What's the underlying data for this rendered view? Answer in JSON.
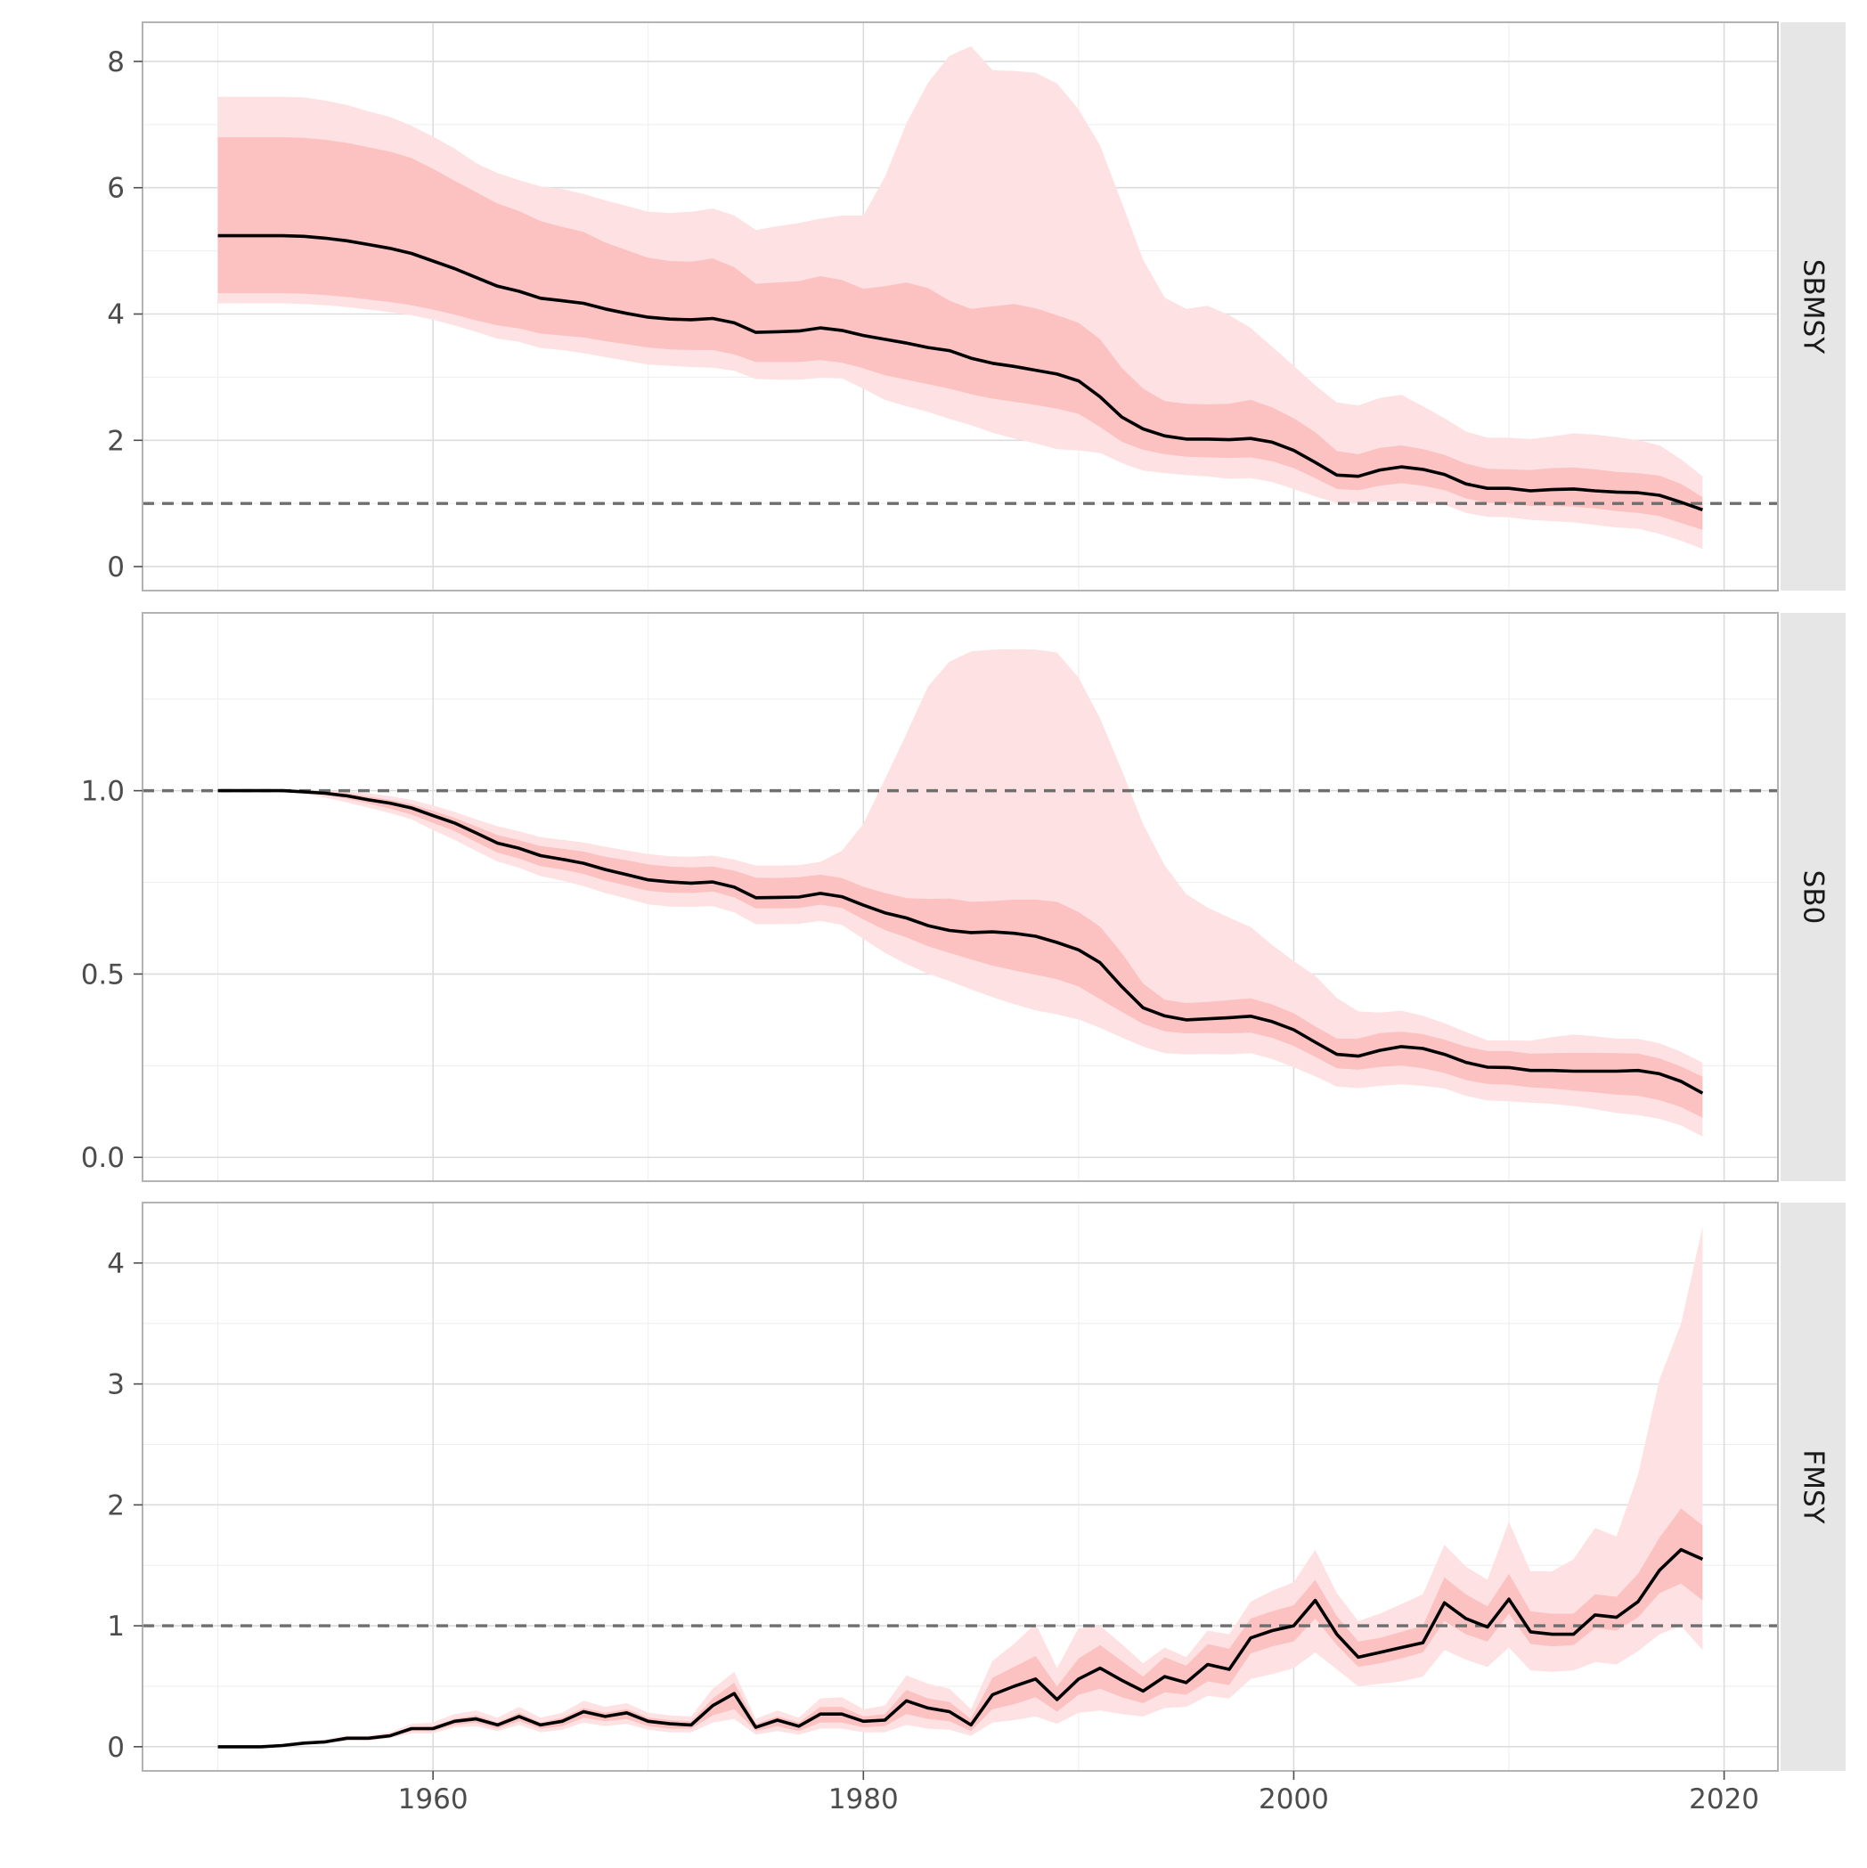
{
  "chart_data": {
    "type": "area",
    "facet_layout": "vertical-stack, shared x axis, facet labels in right strips",
    "grid": true,
    "legend": "none",
    "x_axis": {
      "range": [
        1946.5,
        2022.5
      ],
      "ticks": [
        1960,
        1980,
        2000,
        2020
      ],
      "tick_labels": [
        "1960",
        "1980",
        "2000",
        "2020"
      ]
    },
    "colors": {
      "outer_band": "#fee1e2",
      "inner_band": "#fcc2c1",
      "median_line": "#000000",
      "reference_line": "#6e6e6e",
      "strip": "#e6e6e6",
      "grid": "#dcdcdc"
    },
    "years": [
      1950,
      1951,
      1952,
      1953,
      1954,
      1955,
      1956,
      1957,
      1958,
      1959,
      1960,
      1961,
      1962,
      1963,
      1964,
      1965,
      1966,
      1967,
      1968,
      1969,
      1970,
      1971,
      1972,
      1973,
      1974,
      1975,
      1976,
      1977,
      1978,
      1979,
      1980,
      1981,
      1982,
      1983,
      1984,
      1985,
      1986,
      1987,
      1988,
      1989,
      1990,
      1991,
      1992,
      1993,
      1994,
      1995,
      1996,
      1997,
      1998,
      1999,
      2000,
      2001,
      2002,
      2003,
      2004,
      2005,
      2006,
      2007,
      2008,
      2009,
      2010,
      2011,
      2012,
      2013,
      2014,
      2015,
      2016,
      2017,
      2018,
      2019
    ],
    "panels": [
      {
        "label": "SBMSY",
        "y_range": [
          -0.38,
          8.62
        ],
        "y_ticks": [
          0,
          2,
          4,
          6,
          8
        ],
        "y_tick_labels": [
          "0",
          "2",
          "4",
          "6",
          "8"
        ],
        "reference": 1,
        "median": [
          5.24,
          5.24,
          5.24,
          5.24,
          5.23,
          5.2,
          5.16,
          5.1,
          5.04,
          4.96,
          4.84,
          4.72,
          4.58,
          4.44,
          4.36,
          4.25,
          4.21,
          4.17,
          4.08,
          4.01,
          3.95,
          3.92,
          3.91,
          3.93,
          3.86,
          3.71,
          3.72,
          3.73,
          3.78,
          3.74,
          3.66,
          3.6,
          3.54,
          3.47,
          3.42,
          3.3,
          3.22,
          3.17,
          3.11,
          3.05,
          2.94,
          2.69,
          2.37,
          2.18,
          2.07,
          2.02,
          2.02,
          2.01,
          2.03,
          1.97,
          1.84,
          1.65,
          1.45,
          1.43,
          1.53,
          1.58,
          1.54,
          1.46,
          1.31,
          1.24,
          1.24,
          1.2,
          1.22,
          1.23,
          1.2,
          1.18,
          1.17,
          1.13,
          1.02,
          0.9
        ],
        "inner_lower": [
          4.33,
          4.33,
          4.33,
          4.33,
          4.32,
          4.3,
          4.27,
          4.23,
          4.19,
          4.14,
          4.07,
          3.99,
          3.9,
          3.82,
          3.77,
          3.69,
          3.66,
          3.63,
          3.57,
          3.52,
          3.47,
          3.44,
          3.43,
          3.43,
          3.36,
          3.24,
          3.24,
          3.24,
          3.27,
          3.23,
          3.14,
          3.03,
          2.96,
          2.89,
          2.82,
          2.73,
          2.66,
          2.61,
          2.56,
          2.5,
          2.42,
          2.21,
          1.98,
          1.85,
          1.78,
          1.74,
          1.73,
          1.72,
          1.73,
          1.67,
          1.56,
          1.4,
          1.23,
          1.21,
          1.28,
          1.32,
          1.28,
          1.21,
          1.08,
          1.01,
          1.0,
          0.96,
          0.96,
          0.95,
          0.92,
          0.88,
          0.85,
          0.8,
          0.69,
          0.58
        ],
        "inner_upper": [
          6.8,
          6.8,
          6.8,
          6.8,
          6.79,
          6.76,
          6.71,
          6.64,
          6.57,
          6.47,
          6.3,
          6.11,
          5.93,
          5.75,
          5.63,
          5.47,
          5.38,
          5.3,
          5.13,
          5.01,
          4.89,
          4.84,
          4.83,
          4.88,
          4.74,
          4.48,
          4.5,
          4.52,
          4.6,
          4.54,
          4.4,
          4.44,
          4.5,
          4.41,
          4.21,
          4.08,
          4.12,
          4.16,
          4.09,
          3.98,
          3.86,
          3.6,
          3.15,
          2.82,
          2.62,
          2.58,
          2.57,
          2.58,
          2.64,
          2.52,
          2.35,
          2.13,
          1.83,
          1.78,
          1.88,
          1.92,
          1.86,
          1.77,
          1.63,
          1.55,
          1.54,
          1.53,
          1.56,
          1.57,
          1.54,
          1.5,
          1.48,
          1.44,
          1.31,
          1.1
        ],
        "outer_lower": [
          4.17,
          4.17,
          4.17,
          4.17,
          4.16,
          4.14,
          4.11,
          4.07,
          4.03,
          3.98,
          3.91,
          3.82,
          3.72,
          3.61,
          3.56,
          3.46,
          3.43,
          3.38,
          3.32,
          3.26,
          3.2,
          3.18,
          3.16,
          3.15,
          3.1,
          2.97,
          2.96,
          2.96,
          2.99,
          2.98,
          2.82,
          2.64,
          2.54,
          2.45,
          2.34,
          2.24,
          2.12,
          2.03,
          1.95,
          1.86,
          1.84,
          1.8,
          1.64,
          1.52,
          1.48,
          1.45,
          1.43,
          1.39,
          1.4,
          1.34,
          1.23,
          1.11,
          1.01,
          1.01,
          1.03,
          1.04,
          1.02,
          0.98,
          0.85,
          0.79,
          0.78,
          0.74,
          0.72,
          0.7,
          0.66,
          0.62,
          0.6,
          0.52,
          0.41,
          0.28
        ],
        "outer_upper": [
          7.44,
          7.44,
          7.44,
          7.44,
          7.43,
          7.38,
          7.31,
          7.21,
          7.12,
          6.98,
          6.81,
          6.62,
          6.39,
          6.23,
          6.12,
          6.02,
          5.98,
          5.9,
          5.8,
          5.71,
          5.62,
          5.6,
          5.62,
          5.67,
          5.56,
          5.33,
          5.39,
          5.44,
          5.51,
          5.56,
          5.56,
          6.17,
          7.02,
          7.66,
          8.09,
          8.24,
          7.86,
          7.85,
          7.82,
          7.65,
          7.24,
          6.67,
          5.77,
          4.86,
          4.26,
          4.08,
          4.13,
          3.98,
          3.78,
          3.48,
          3.18,
          2.87,
          2.6,
          2.55,
          2.67,
          2.72,
          2.54,
          2.35,
          2.14,
          2.04,
          2.04,
          2.02,
          2.06,
          2.11,
          2.09,
          2.05,
          2.0,
          1.92,
          1.7,
          1.43
        ]
      },
      {
        "label": "SB0",
        "y_range": [
          -0.065,
          1.485
        ],
        "y_ticks": [
          0.0,
          0.5,
          1.0
        ],
        "y_tick_labels": [
          "0.0",
          "0.5",
          "1.0"
        ],
        "reference": 1,
        "median": [
          1.0,
          1.0,
          1.0,
          1.0,
          0.997,
          0.993,
          0.986,
          0.975,
          0.966,
          0.953,
          0.932,
          0.912,
          0.885,
          0.857,
          0.843,
          0.823,
          0.813,
          0.802,
          0.785,
          0.771,
          0.757,
          0.751,
          0.748,
          0.751,
          0.737,
          0.708,
          0.709,
          0.71,
          0.72,
          0.711,
          0.688,
          0.667,
          0.653,
          0.632,
          0.619,
          0.613,
          0.615,
          0.611,
          0.603,
          0.586,
          0.566,
          0.531,
          0.466,
          0.408,
          0.386,
          0.375,
          0.378,
          0.381,
          0.385,
          0.37,
          0.348,
          0.314,
          0.281,
          0.276,
          0.292,
          0.302,
          0.297,
          0.281,
          0.259,
          0.246,
          0.245,
          0.237,
          0.237,
          0.235,
          0.235,
          0.235,
          0.237,
          0.228,
          0.207,
          0.175
        ],
        "inner_lower": [
          1.0,
          1.0,
          1.0,
          1.0,
          0.995,
          0.988,
          0.978,
          0.965,
          0.951,
          0.935,
          0.912,
          0.89,
          0.86,
          0.831,
          0.815,
          0.794,
          0.785,
          0.773,
          0.755,
          0.741,
          0.727,
          0.722,
          0.721,
          0.725,
          0.709,
          0.679,
          0.679,
          0.68,
          0.689,
          0.68,
          0.649,
          0.62,
          0.6,
          0.576,
          0.558,
          0.54,
          0.523,
          0.51,
          0.498,
          0.486,
          0.466,
          0.431,
          0.397,
          0.364,
          0.344,
          0.338,
          0.339,
          0.338,
          0.34,
          0.326,
          0.304,
          0.274,
          0.243,
          0.239,
          0.247,
          0.25,
          0.243,
          0.23,
          0.211,
          0.2,
          0.198,
          0.191,
          0.188,
          0.182,
          0.177,
          0.171,
          0.168,
          0.156,
          0.137,
          0.108
        ],
        "inner_upper": [
          1.0,
          1.0,
          1.0,
          1.0,
          1.0,
          0.997,
          0.993,
          0.984,
          0.975,
          0.963,
          0.945,
          0.926,
          0.903,
          0.879,
          0.865,
          0.849,
          0.842,
          0.834,
          0.82,
          0.81,
          0.799,
          0.793,
          0.791,
          0.793,
          0.782,
          0.763,
          0.762,
          0.764,
          0.771,
          0.762,
          0.738,
          0.721,
          0.707,
          0.705,
          0.706,
          0.697,
          0.699,
          0.703,
          0.703,
          0.697,
          0.669,
          0.629,
          0.558,
          0.474,
          0.43,
          0.421,
          0.424,
          0.429,
          0.434,
          0.417,
          0.393,
          0.357,
          0.324,
          0.324,
          0.339,
          0.343,
          0.336,
          0.321,
          0.302,
          0.29,
          0.29,
          0.283,
          0.284,
          0.285,
          0.285,
          0.284,
          0.283,
          0.27,
          0.248,
          0.22
        ],
        "outer_lower": [
          1.0,
          1.0,
          1.0,
          1.0,
          0.993,
          0.981,
          0.968,
          0.954,
          0.939,
          0.922,
          0.893,
          0.866,
          0.836,
          0.807,
          0.79,
          0.767,
          0.755,
          0.74,
          0.721,
          0.706,
          0.69,
          0.684,
          0.683,
          0.685,
          0.668,
          0.636,
          0.636,
          0.637,
          0.645,
          0.634,
          0.596,
          0.558,
          0.527,
          0.501,
          0.481,
          0.458,
          0.437,
          0.418,
          0.401,
          0.39,
          0.376,
          0.353,
          0.327,
          0.302,
          0.284,
          0.281,
          0.282,
          0.281,
          0.284,
          0.268,
          0.246,
          0.221,
          0.193,
          0.189,
          0.195,
          0.199,
          0.195,
          0.188,
          0.168,
          0.155,
          0.153,
          0.149,
          0.146,
          0.14,
          0.131,
          0.121,
          0.115,
          0.105,
          0.087,
          0.057
        ],
        "outer_upper": [
          1.0,
          1.0,
          1.0,
          1.0,
          1.0,
          0.999,
          0.998,
          0.993,
          0.985,
          0.975,
          0.96,
          0.942,
          0.922,
          0.903,
          0.889,
          0.873,
          0.866,
          0.859,
          0.847,
          0.837,
          0.827,
          0.821,
          0.82,
          0.823,
          0.812,
          0.796,
          0.796,
          0.797,
          0.806,
          0.836,
          0.91,
          1.031,
          1.155,
          1.284,
          1.352,
          1.38,
          1.385,
          1.386,
          1.385,
          1.377,
          1.308,
          1.197,
          1.057,
          0.909,
          0.797,
          0.718,
          0.681,
          0.654,
          0.628,
          0.579,
          0.535,
          0.495,
          0.435,
          0.398,
          0.395,
          0.4,
          0.386,
          0.366,
          0.342,
          0.319,
          0.319,
          0.318,
          0.328,
          0.335,
          0.33,
          0.324,
          0.323,
          0.311,
          0.288,
          0.258
        ]
      },
      {
        "label": "FMSY",
        "y_range": [
          -0.2,
          4.5
        ],
        "y_ticks": [
          0,
          1,
          2,
          3,
          4
        ],
        "y_tick_labels": [
          "0",
          "1",
          "2",
          "3",
          "4"
        ],
        "reference": 1,
        "median": [
          0.0,
          0.0,
          0.0,
          0.01,
          0.03,
          0.04,
          0.07,
          0.07,
          0.09,
          0.15,
          0.15,
          0.21,
          0.23,
          0.18,
          0.25,
          0.18,
          0.21,
          0.29,
          0.25,
          0.28,
          0.21,
          0.19,
          0.18,
          0.34,
          0.44,
          0.16,
          0.22,
          0.17,
          0.27,
          0.27,
          0.21,
          0.22,
          0.38,
          0.32,
          0.29,
          0.18,
          0.43,
          0.5,
          0.56,
          0.39,
          0.56,
          0.65,
          0.55,
          0.46,
          0.58,
          0.53,
          0.68,
          0.64,
          0.9,
          0.96,
          1.0,
          1.21,
          0.93,
          0.74,
          0.78,
          0.82,
          0.86,
          1.19,
          1.06,
          0.99,
          1.22,
          0.95,
          0.93,
          0.93,
          1.09,
          1.07,
          1.2,
          1.46,
          1.63,
          1.55
        ],
        "inner_lower": [
          0.0,
          0.0,
          0.0,
          0.01,
          0.03,
          0.04,
          0.06,
          0.06,
          0.08,
          0.13,
          0.13,
          0.18,
          0.2,
          0.15,
          0.21,
          0.15,
          0.17,
          0.24,
          0.21,
          0.23,
          0.17,
          0.15,
          0.15,
          0.26,
          0.31,
          0.13,
          0.17,
          0.13,
          0.2,
          0.2,
          0.16,
          0.17,
          0.27,
          0.23,
          0.21,
          0.13,
          0.31,
          0.35,
          0.41,
          0.29,
          0.43,
          0.48,
          0.41,
          0.36,
          0.45,
          0.43,
          0.54,
          0.51,
          0.77,
          0.83,
          0.87,
          1.06,
          0.84,
          0.66,
          0.69,
          0.73,
          0.78,
          1.04,
          0.93,
          0.87,
          1.1,
          0.85,
          0.83,
          0.84,
          0.98,
          0.96,
          1.07,
          1.27,
          1.35,
          1.21
        ],
        "inner_upper": [
          0.0,
          0.0,
          0.0,
          0.01,
          0.03,
          0.05,
          0.08,
          0.08,
          0.1,
          0.16,
          0.17,
          0.23,
          0.26,
          0.2,
          0.28,
          0.2,
          0.24,
          0.32,
          0.28,
          0.31,
          0.24,
          0.22,
          0.21,
          0.4,
          0.53,
          0.19,
          0.25,
          0.2,
          0.33,
          0.33,
          0.25,
          0.27,
          0.47,
          0.4,
          0.37,
          0.23,
          0.57,
          0.66,
          0.75,
          0.5,
          0.73,
          0.84,
          0.71,
          0.58,
          0.74,
          0.67,
          0.85,
          0.81,
          1.06,
          1.12,
          1.17,
          1.38,
          1.08,
          0.87,
          0.9,
          0.95,
          1.0,
          1.4,
          1.26,
          1.16,
          1.43,
          1.12,
          1.1,
          1.1,
          1.26,
          1.24,
          1.43,
          1.73,
          1.97,
          1.83
        ],
        "outer_lower": [
          0.0,
          0.0,
          0.0,
          0.01,
          0.02,
          0.03,
          0.05,
          0.05,
          0.07,
          0.11,
          0.11,
          0.16,
          0.17,
          0.13,
          0.18,
          0.12,
          0.14,
          0.2,
          0.17,
          0.19,
          0.14,
          0.12,
          0.12,
          0.2,
          0.23,
          0.1,
          0.13,
          0.1,
          0.15,
          0.15,
          0.12,
          0.12,
          0.18,
          0.15,
          0.14,
          0.09,
          0.2,
          0.22,
          0.25,
          0.19,
          0.28,
          0.3,
          0.27,
          0.25,
          0.32,
          0.33,
          0.42,
          0.4,
          0.56,
          0.6,
          0.65,
          0.78,
          0.64,
          0.5,
          0.52,
          0.54,
          0.58,
          0.8,
          0.72,
          0.66,
          0.82,
          0.63,
          0.62,
          0.63,
          0.7,
          0.68,
          0.79,
          0.93,
          1.0,
          0.8
        ],
        "outer_upper": [
          0.0,
          0.0,
          0.0,
          0.02,
          0.04,
          0.06,
          0.09,
          0.09,
          0.12,
          0.19,
          0.2,
          0.27,
          0.3,
          0.24,
          0.33,
          0.24,
          0.28,
          0.38,
          0.33,
          0.36,
          0.28,
          0.26,
          0.25,
          0.48,
          0.62,
          0.23,
          0.3,
          0.24,
          0.4,
          0.41,
          0.31,
          0.34,
          0.59,
          0.52,
          0.48,
          0.31,
          0.71,
          0.85,
          1.02,
          0.65,
          0.98,
          1.0,
          0.85,
          0.69,
          0.82,
          0.74,
          0.96,
          0.93,
          1.2,
          1.29,
          1.36,
          1.63,
          1.27,
          1.04,
          1.1,
          1.18,
          1.26,
          1.67,
          1.49,
          1.38,
          1.86,
          1.45,
          1.45,
          1.55,
          1.81,
          1.74,
          2.25,
          3.04,
          3.5,
          4.3
        ]
      }
    ]
  }
}
